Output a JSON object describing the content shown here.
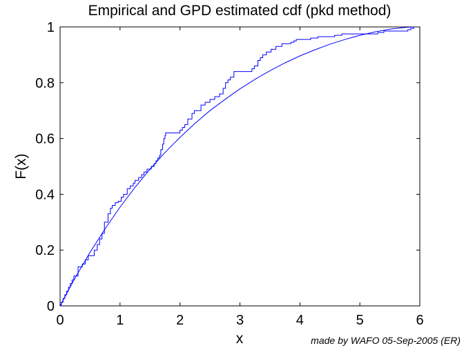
{
  "chart_data": {
    "type": "line",
    "title": "Empirical and GPD estimated cdf (pkd method)",
    "xlabel": "x",
    "ylabel": "F(x)",
    "xlim": [
      0,
      6
    ],
    "ylim": [
      0,
      1
    ],
    "xticks": [
      0,
      1,
      2,
      3,
      4,
      5,
      6
    ],
    "yticks": [
      0,
      0.2,
      0.4,
      0.6,
      0.8,
      1
    ],
    "xtick_labels": [
      "0",
      "1",
      "2",
      "3",
      "4",
      "5",
      "6"
    ],
    "ytick_labels": [
      "0",
      "0.2",
      "0.4",
      "0.6",
      "0.8",
      "1"
    ],
    "grid": false,
    "line_color": "#0000ff",
    "series": [
      {
        "kind": "step",
        "x": [
          0.02,
          0.05,
          0.08,
          0.11,
          0.14,
          0.17,
          0.2,
          0.23,
          0.3,
          0.37,
          0.42,
          0.47,
          0.57,
          0.62,
          0.66,
          0.7,
          0.74,
          0.8,
          0.84,
          0.87,
          0.92,
          0.97,
          1.02,
          1.06,
          1.12,
          1.17,
          1.22,
          1.25,
          1.31,
          1.36,
          1.4,
          1.45,
          1.52,
          1.57,
          1.6,
          1.63,
          1.66,
          1.68,
          1.71,
          1.73,
          1.75,
          1.76,
          2.0,
          2.04,
          2.08,
          2.13,
          2.2,
          2.24,
          2.35,
          2.42,
          2.5,
          2.58,
          2.66,
          2.72,
          2.76,
          2.8,
          2.84,
          2.9,
          3.2,
          3.24,
          3.3,
          3.34,
          3.38,
          3.44,
          3.52,
          3.6,
          3.7,
          3.85,
          3.9,
          3.94,
          4.18,
          4.3,
          4.58,
          4.7,
          5.3,
          5.4,
          5.8,
          5.85,
          5.9
        ],
        "y": [
          0.013,
          0.027,
          0.04,
          0.053,
          0.067,
          0.08,
          0.093,
          0.107,
          0.14,
          0.15,
          0.165,
          0.18,
          0.2,
          0.22,
          0.24,
          0.26,
          0.3,
          0.33,
          0.35,
          0.36,
          0.37,
          0.375,
          0.39,
          0.4,
          0.42,
          0.43,
          0.44,
          0.45,
          0.46,
          0.47,
          0.48,
          0.49,
          0.5,
          0.51,
          0.52,
          0.53,
          0.54,
          0.56,
          0.58,
          0.6,
          0.61,
          0.62,
          0.63,
          0.64,
          0.65,
          0.67,
          0.69,
          0.7,
          0.72,
          0.73,
          0.74,
          0.75,
          0.76,
          0.78,
          0.8,
          0.81,
          0.82,
          0.84,
          0.85,
          0.86,
          0.88,
          0.89,
          0.9,
          0.91,
          0.92,
          0.93,
          0.94,
          0.945,
          0.95,
          0.955,
          0.96,
          0.965,
          0.97,
          0.975,
          0.98,
          0.985,
          0.99,
          0.995,
          1.0
        ]
      },
      {
        "kind": "line",
        "x": [
          0,
          0.25,
          0.5,
          0.75,
          1.0,
          1.25,
          1.5,
          1.75,
          2.0,
          2.25,
          2.5,
          2.75,
          3.0,
          3.25,
          3.5,
          3.75,
          4.0,
          4.25,
          4.5,
          4.75,
          5.0,
          5.25,
          5.5,
          5.75,
          5.9
        ],
        "y": [
          0,
          0.1,
          0.192,
          0.276,
          0.354,
          0.425,
          0.49,
          0.55,
          0.604,
          0.654,
          0.7,
          0.74,
          0.778,
          0.812,
          0.843,
          0.871,
          0.896,
          0.918,
          0.938,
          0.955,
          0.97,
          0.982,
          0.992,
          0.998,
          1.0
        ]
      }
    ]
  },
  "footer_text": "made by WAFO 05-Sep-2005 (ER)"
}
